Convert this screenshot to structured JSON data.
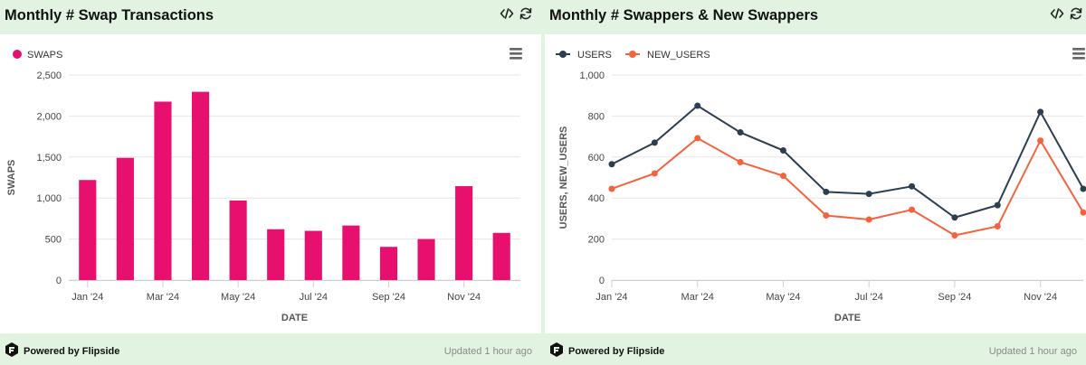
{
  "panels": [
    {
      "title": "Monthly # Swap Transactions",
      "icons": [
        "code-icon",
        "refresh-icon",
        "menu-icon"
      ],
      "footer": {
        "brand": "Powered by Flipside",
        "updated": "Updated 1 hour ago"
      }
    },
    {
      "title": "Monthly # Swappers & New Swappers",
      "icons": [
        "code-icon",
        "refresh-icon",
        "menu-icon"
      ],
      "footer": {
        "brand": "Powered by Flipside",
        "updated": "Updated 1 hour ago"
      }
    }
  ],
  "chart_data": [
    {
      "type": "bar",
      "categories": [
        "Jan '24",
        "Feb '24",
        "Mar '24",
        "Apr '24",
        "May '24",
        "Jun '24",
        "Jul '24",
        "Aug '24",
        "Sep '24",
        "Oct '24",
        "Nov '24",
        "Dec '24"
      ],
      "tick_labels": [
        "Jan '24",
        "Mar '24",
        "May '24",
        "Jul '24",
        "Sep '24",
        "Nov '24"
      ],
      "series": [
        {
          "name": "SWAPS",
          "color": "#e8106e",
          "values": [
            1220,
            1490,
            2175,
            2295,
            970,
            620,
            600,
            665,
            405,
            500,
            1145,
            575
          ]
        }
      ],
      "xlabel": "DATE",
      "ylabel": "SWAPS",
      "ylim": [
        0,
        2500
      ],
      "yticks": [
        0,
        500,
        1000,
        1500,
        2000,
        2500
      ],
      "ytick_labels": [
        "0",
        "500",
        "1,000",
        "1,500",
        "2,000",
        "2,500"
      ],
      "legend": "top-left"
    },
    {
      "type": "line",
      "categories": [
        "Jan '24",
        "Feb '24",
        "Mar '24",
        "Apr '24",
        "May '24",
        "Jun '24",
        "Jul '24",
        "Aug '24",
        "Sep '24",
        "Oct '24",
        "Nov '24",
        "Dec '24"
      ],
      "tick_labels": [
        "Jan '24",
        "Mar '24",
        "May '24",
        "Jul '24",
        "Sep '24",
        "Nov '24"
      ],
      "series": [
        {
          "name": "USERS",
          "color": "#2d3e50",
          "values": [
            565,
            670,
            850,
            720,
            632,
            430,
            420,
            457,
            305,
            365,
            820,
            445
          ]
        },
        {
          "name": "NEW_USERS",
          "color": "#f4623e",
          "values": [
            445,
            520,
            692,
            575,
            508,
            315,
            295,
            343,
            218,
            262,
            680,
            330
          ]
        }
      ],
      "xlabel": "DATE",
      "ylabel": "USERS, NEW_USERS",
      "ylim": [
        0,
        1000
      ],
      "yticks": [
        0,
        200,
        400,
        600,
        800,
        1000
      ],
      "ytick_labels": [
        "0",
        "200",
        "400",
        "600",
        "800",
        "1,000"
      ],
      "legend": "top-left"
    }
  ]
}
